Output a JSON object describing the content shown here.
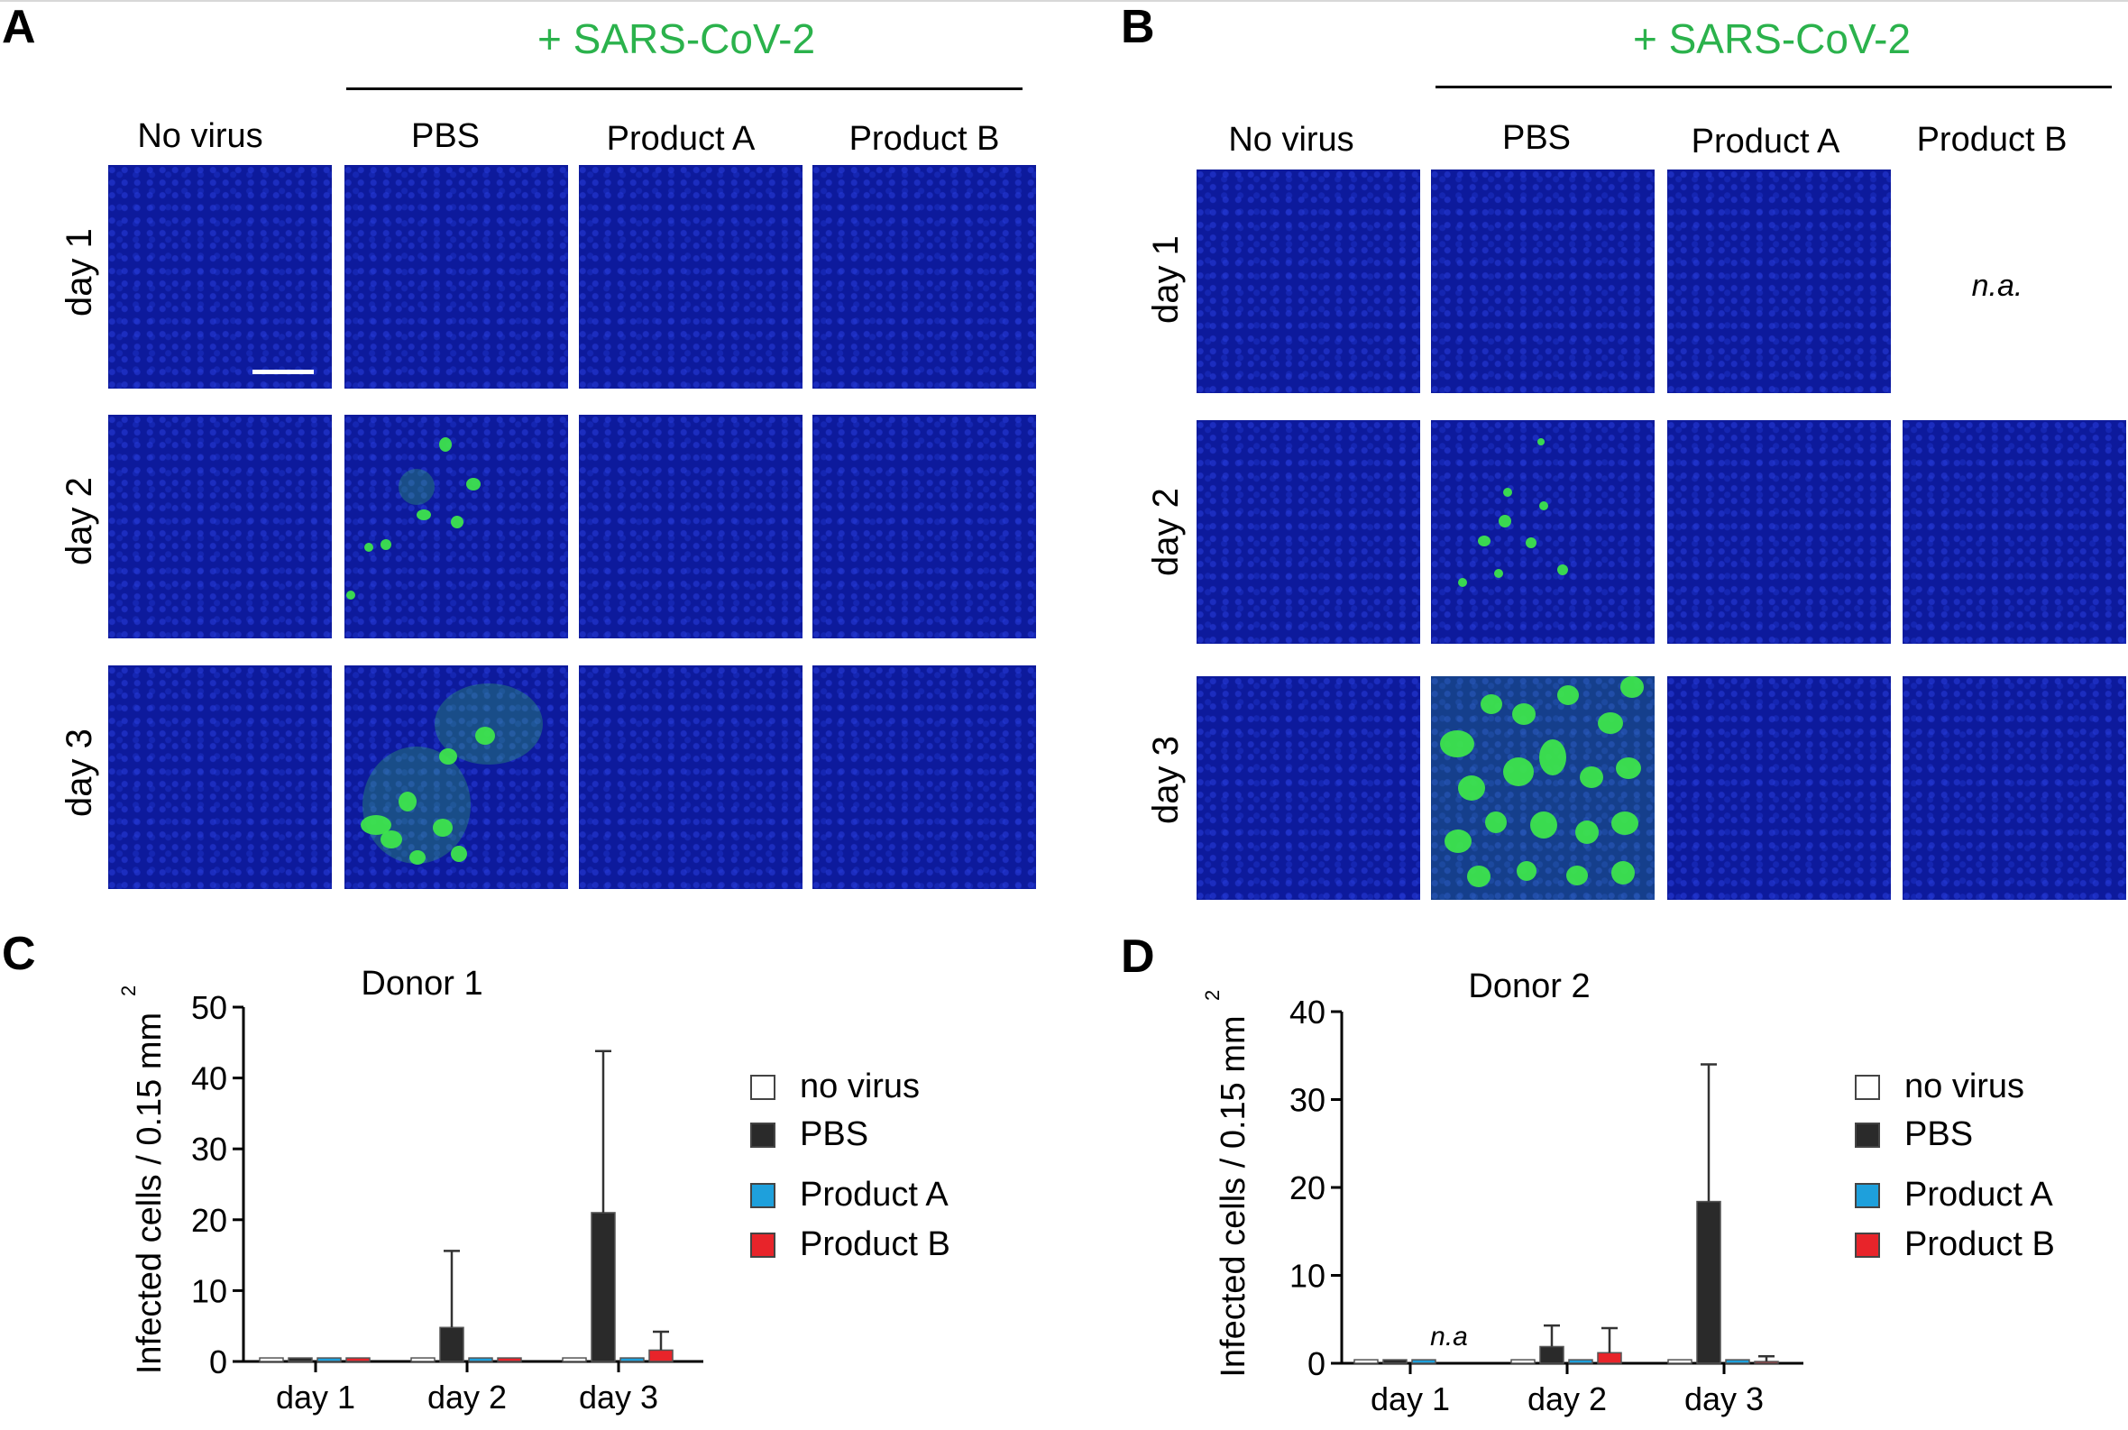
{
  "panels": {
    "A": {
      "letter": "A",
      "virus_label": "+ SARS-CoV-2",
      "columns": [
        "No virus",
        "PBS",
        "Product A",
        "Product B"
      ],
      "rows": [
        "day 1",
        "day 2",
        "day 3"
      ]
    },
    "B": {
      "letter": "B",
      "virus_label": "+ SARS-CoV-2",
      "columns": [
        "No virus",
        "PBS",
        "Product A",
        "Product B"
      ],
      "rows": [
        "day 1",
        "day 2",
        "day 3"
      ],
      "na_label": "n.a."
    },
    "C": {
      "letter": "C"
    },
    "D": {
      "letter": "D"
    }
  },
  "colors": {
    "virus_green": "#2bb24c",
    "tile_blue": "#0d1a9c",
    "infected_green": "#3ee84a",
    "no_virus": "#ffffff",
    "pbs": "#2a2a2a",
    "product_a": "#1ea0dc",
    "product_b": "#e8242a"
  },
  "chart_data": [
    {
      "type": "bar",
      "title": "Donor 1",
      "ylabel": "Infected cells / 0.15 mm",
      "ylabel_superscript": "2",
      "categories": [
        "day 1",
        "day 2",
        "day 3"
      ],
      "ylim": [
        0,
        50
      ],
      "yticks": [
        0,
        10,
        20,
        30,
        40,
        50
      ],
      "legend": "right",
      "series": [
        {
          "name": "no virus",
          "values": [
            0.5,
            0.5,
            0.5
          ],
          "error": [
            0,
            0,
            0
          ]
        },
        {
          "name": "PBS",
          "values": [
            0.5,
            4.8,
            21
          ],
          "error": [
            0,
            10.8,
            22.8
          ]
        },
        {
          "name": "Product A",
          "values": [
            0.5,
            0.5,
            0.5
          ],
          "error": [
            0,
            0,
            0
          ]
        },
        {
          "name": "Product B",
          "values": [
            0.5,
            0.5,
            1.6
          ],
          "error": [
            0,
            0,
            2.6
          ]
        }
      ],
      "annotations": []
    },
    {
      "type": "bar",
      "title": "Donor 2",
      "ylabel": "Infected cells / 0.15 mm",
      "ylabel_superscript": "2",
      "categories": [
        "day 1",
        "day 2",
        "day 3"
      ],
      "ylim": [
        0,
        40
      ],
      "yticks": [
        0,
        10,
        20,
        30,
        40
      ],
      "legend": "right",
      "series": [
        {
          "name": "no virus",
          "values": [
            0.4,
            0.4,
            0.4
          ],
          "error": [
            0,
            0,
            0
          ]
        },
        {
          "name": "PBS",
          "values": [
            0.4,
            1.9,
            18.4
          ],
          "error": [
            0,
            2.4,
            15.6
          ]
        },
        {
          "name": "Product A",
          "values": [
            0.4,
            0.4,
            0.4
          ],
          "error": [
            0,
            0,
            0
          ]
        },
        {
          "name": "Product B",
          "values": [
            null,
            1.2,
            0.2
          ],
          "error": [
            0,
            2.8,
            0.6
          ]
        }
      ],
      "annotations": [
        "n.a"
      ]
    }
  ]
}
